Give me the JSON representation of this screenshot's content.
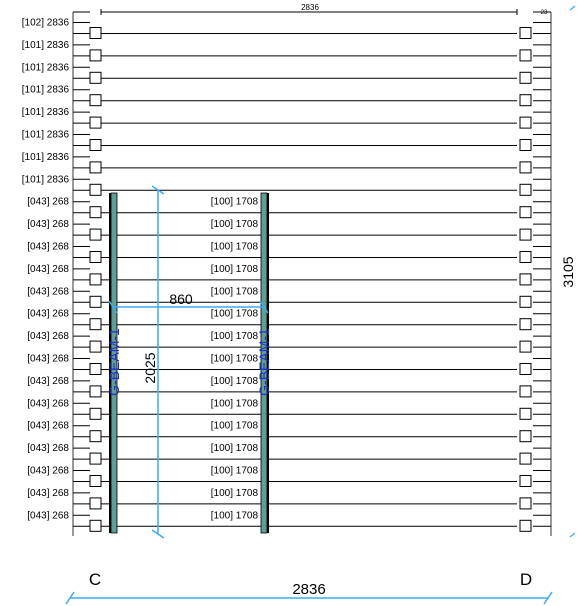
{
  "drawing": {
    "top_span_label": "2836",
    "top_corner_label": "23",
    "rows": [
      {
        "label": "[102] 2836",
        "type": "full"
      },
      {
        "label": "[101] 2836",
        "type": "full"
      },
      {
        "label": "[101] 2836",
        "type": "full"
      },
      {
        "label": "[101] 2836",
        "type": "full"
      },
      {
        "label": "[101] 2836",
        "type": "full"
      },
      {
        "label": "[101] 2836",
        "type": "full"
      },
      {
        "label": "[101] 2836",
        "type": "full"
      },
      {
        "label": "[101] 2836",
        "type": "full"
      },
      {
        "label": "[043] 268",
        "right_label": "[100] 1708",
        "type": "split"
      },
      {
        "label": "[043] 268",
        "right_label": "[100] 1708",
        "type": "split"
      },
      {
        "label": "[043] 268",
        "right_label": "[100] 1708",
        "type": "split"
      },
      {
        "label": "[043] 268",
        "right_label": "[100] 1708",
        "type": "split"
      },
      {
        "label": "[043] 268",
        "right_label": "[100] 1708",
        "type": "split"
      },
      {
        "label": "[043] 268",
        "right_label": "[100] 1708",
        "type": "split"
      },
      {
        "label": "[043] 268",
        "right_label": "[100] 1708",
        "type": "split"
      },
      {
        "label": "[043] 268",
        "right_label": "[100] 1708",
        "type": "split"
      },
      {
        "label": "[043] 268",
        "right_label": "[100] 1708",
        "type": "split"
      },
      {
        "label": "[043] 268",
        "right_label": "[100] 1708",
        "type": "split"
      },
      {
        "label": "[043] 268",
        "right_label": "[100] 1708",
        "type": "split"
      },
      {
        "label": "[043] 268",
        "right_label": "[100] 1708",
        "type": "split"
      },
      {
        "label": "[043] 268",
        "right_label": "[100] 1708",
        "type": "split"
      },
      {
        "label": "[043] 268",
        "right_label": "[100] 1708",
        "type": "split"
      },
      {
        "label": "[043] 268",
        "right_label": "[100] 1708",
        "type": "split"
      }
    ],
    "beam_left_label": "G-BEAM-1",
    "beam_right_label": "G-BEAM-1",
    "opening_height_label": "2025",
    "opening_width_label": "860",
    "overall_height_label": "3105",
    "overall_width_label": "2836",
    "grid_left_label": "C",
    "grid_right_label": "D",
    "colors": {
      "line": "#000000",
      "dimension": "#3fa9f5",
      "beam_fill": "#5e9e94",
      "beam_text": "#1f2fd0"
    }
  }
}
